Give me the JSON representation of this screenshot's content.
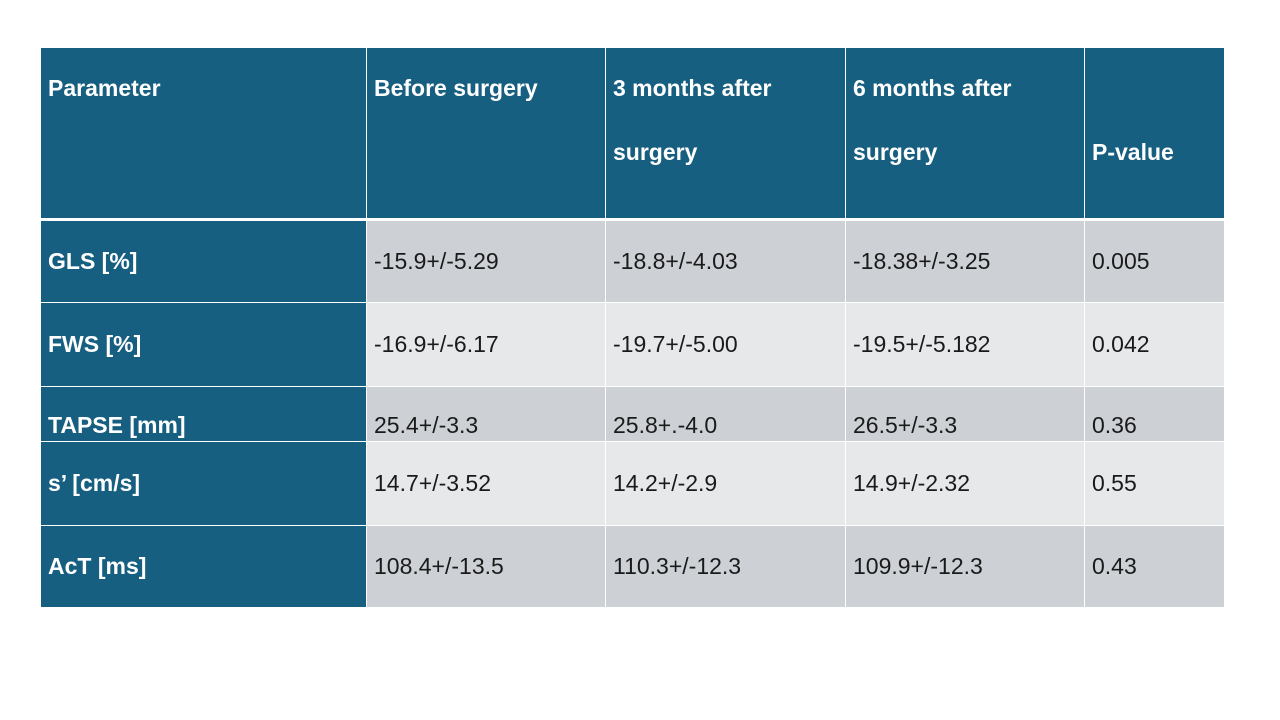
{
  "table": {
    "header": [
      "Parameter",
      "Before surgery",
      "3 months after surgery",
      "6 months after surgery",
      "P-value"
    ],
    "rows": [
      [
        "GLS [%]",
        "-15.9+/-5.29",
        "-18.8+/-4.03",
        "-18.38+/-3.25",
        "0.005"
      ],
      [
        "FWS [%]",
        "-16.9+/-6.17",
        "-19.7+/-5.00",
        "-19.5+/-5.182",
        "0.042"
      ],
      [
        "TAPSE [mm]",
        "25.4+/-3.3",
        "25.8+.-4.0",
        "26.5+/-3.3",
        "0.36"
      ],
      [
        "s’ [cm/s]",
        "14.7+/-3.52",
        "14.2+/-2.9",
        "14.9+/-2.32",
        "0.55"
      ],
      [
        "AcT [ms]",
        "108.4+/-13.5",
        "110.3+/-12.3",
        "109.9+/-12.3",
        "0.43"
      ]
    ]
  }
}
